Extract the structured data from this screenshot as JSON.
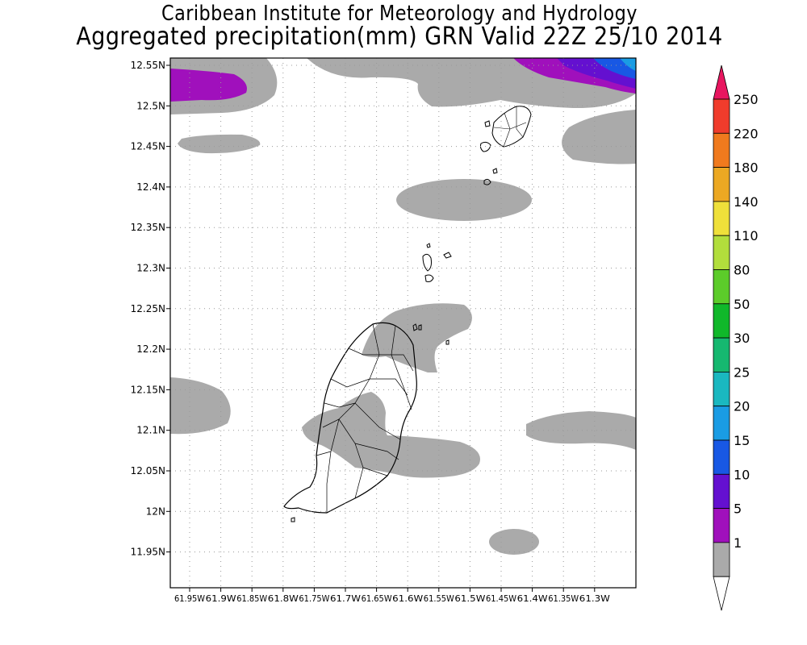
{
  "header": {
    "title": "Caribbean Institute for Meteorology and Hydrology",
    "subtitle": "Aggregated precipitation(mm) GRN Valid 22Z 25/10 2014"
  },
  "map": {
    "lat_ticks": [
      "12.55N",
      "12.5N",
      "12.45N",
      "12.4N",
      "12.35N",
      "12.3N",
      "12.25N",
      "12.2N",
      "12.15N",
      "12.1N",
      "12.05N",
      "12N",
      "11.95N"
    ],
    "lon_ticks": [
      "61.95W",
      "61.9W",
      "61.85W",
      "61.8W",
      "61.75W",
      "61.7W",
      "61.65W",
      "61.6W",
      "61.55W",
      "61.5W",
      "61.45W",
      "61.4W",
      "61.35W",
      "61.3W"
    ]
  },
  "colorbar": {
    "labels": [
      "250",
      "220",
      "180",
      "140",
      "110",
      "80",
      "50",
      "30",
      "25",
      "20",
      "15",
      "10",
      "5",
      "1"
    ],
    "colors": [
      "#e8165f",
      "#f03c2c",
      "#f07a1e",
      "#eca823",
      "#efe03a",
      "#b2de3c",
      "#5ccc2a",
      "#10b82a",
      "#16b870",
      "#1ab8c0",
      "#1a9ce4",
      "#1858e4",
      "#6410d0",
      "#a010bc",
      "#aaaaaa",
      "#ffffff"
    ]
  }
}
